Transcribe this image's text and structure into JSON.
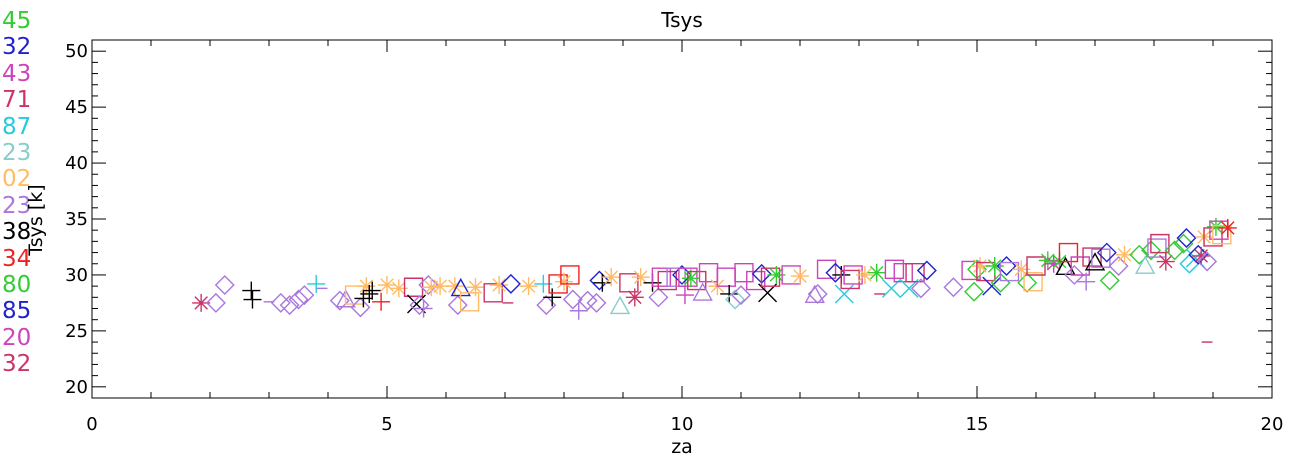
{
  "chart_data": {
    "type": "scatter",
    "title": "Tsys",
    "xlabel": "za",
    "ylabel": "Tsys [k]",
    "xlim": [
      0,
      20
    ],
    "ylim": [
      19,
      51
    ],
    "xticks": [
      0,
      5,
      10,
      15,
      20
    ],
    "yticks": [
      20,
      25,
      30,
      35,
      40,
      45,
      50
    ],
    "xtick_labels": [
      "0",
      "5",
      "10",
      "15",
      "20"
    ],
    "ytick_labels": [
      "20",
      "25",
      "30",
      "35",
      "40",
      "45",
      "50"
    ],
    "grid": false,
    "legend_position": "left-outside",
    "legend": [
      {
        "label": "45",
        "color": "#33cc33"
      },
      {
        "label": "32",
        "color": "#2222cc"
      },
      {
        "label": "43",
        "color": "#cc44bb"
      },
      {
        "label": "71",
        "color": "#cc3366"
      },
      {
        "label": "87",
        "color": "#22ccdd"
      },
      {
        "label": "23",
        "color": "#88cccc"
      },
      {
        "label": "02",
        "color": "#ffbb66"
      },
      {
        "label": "23",
        "color": "#aa77dd"
      },
      {
        "label": "38",
        "color": "#000000"
      },
      {
        "label": "34",
        "color": "#ee2222"
      },
      {
        "label": "80",
        "color": "#33cc33"
      },
      {
        "label": "85",
        "color": "#2222cc"
      },
      {
        "label": "20",
        "color": "#cc44bb"
      },
      {
        "label": "32",
        "color": "#cc3366"
      }
    ],
    "points": [
      {
        "x": 1.85,
        "y": 27.5,
        "m": "star",
        "c": "#cc3366"
      },
      {
        "x": 2.1,
        "y": 27.5,
        "m": "diamond",
        "c": "#aa77dd"
      },
      {
        "x": 2.25,
        "y": 29.1,
        "m": "diamond",
        "c": "#aa77dd"
      },
      {
        "x": 2.7,
        "y": 28.6,
        "m": "plus",
        "c": "#000000"
      },
      {
        "x": 2.72,
        "y": 27.8,
        "m": "plus",
        "c": "#000000"
      },
      {
        "x": 3.0,
        "y": 27.6,
        "m": "dash",
        "c": "#aa77dd"
      },
      {
        "x": 3.2,
        "y": 27.5,
        "m": "diamond",
        "c": "#aa77dd"
      },
      {
        "x": 3.35,
        "y": 27.3,
        "m": "diamond",
        "c": "#aa77dd"
      },
      {
        "x": 3.5,
        "y": 27.8,
        "m": "diamond",
        "c": "#aa77dd"
      },
      {
        "x": 3.6,
        "y": 28.2,
        "m": "diamond",
        "c": "#aa77dd"
      },
      {
        "x": 3.8,
        "y": 29.2,
        "m": "plus",
        "c": "#22ccdd"
      },
      {
        "x": 3.9,
        "y": 28.8,
        "m": "dash",
        "c": "#aa77dd"
      },
      {
        "x": 4.2,
        "y": 27.7,
        "m": "diamond",
        "c": "#aa77dd"
      },
      {
        "x": 4.3,
        "y": 27.8,
        "m": "triangle",
        "c": "#aa77dd"
      },
      {
        "x": 4.45,
        "y": 28.2,
        "m": "square",
        "c": "#ffbb66"
      },
      {
        "x": 4.55,
        "y": 27.1,
        "m": "diamond",
        "c": "#aa77dd"
      },
      {
        "x": 4.6,
        "y": 27.9,
        "m": "plus",
        "c": "#000000"
      },
      {
        "x": 4.65,
        "y": 29.0,
        "m": "star",
        "c": "#ffbb66"
      },
      {
        "x": 4.7,
        "y": 28.3,
        "m": "plus",
        "c": "#000000"
      },
      {
        "x": 4.75,
        "y": 28.6,
        "m": "plus",
        "c": "#000000"
      },
      {
        "x": 4.9,
        "y": 27.6,
        "m": "plus",
        "c": "#ee2222"
      },
      {
        "x": 5.0,
        "y": 29.1,
        "m": "star",
        "c": "#ffbb66"
      },
      {
        "x": 5.2,
        "y": 28.8,
        "m": "star",
        "c": "#ffbb66"
      },
      {
        "x": 5.45,
        "y": 28.9,
        "m": "square",
        "c": "#cc3366"
      },
      {
        "x": 5.5,
        "y": 27.4,
        "m": "x",
        "c": "#000000"
      },
      {
        "x": 5.55,
        "y": 27.3,
        "m": "diamond",
        "c": "#aa77dd"
      },
      {
        "x": 5.62,
        "y": 27.0,
        "m": "plus",
        "c": "#aa77dd"
      },
      {
        "x": 5.7,
        "y": 29.1,
        "m": "diamond",
        "c": "#aa77dd"
      },
      {
        "x": 5.75,
        "y": 28.9,
        "m": "star",
        "c": "#ffbb66"
      },
      {
        "x": 5.9,
        "y": 29.0,
        "m": "star",
        "c": "#ffbb66"
      },
      {
        "x": 6.15,
        "y": 29.0,
        "m": "star",
        "c": "#ffbb66"
      },
      {
        "x": 6.2,
        "y": 27.3,
        "m": "diamond",
        "c": "#aa77dd"
      },
      {
        "x": 6.25,
        "y": 28.8,
        "m": "triangle",
        "c": "#2222cc"
      },
      {
        "x": 6.4,
        "y": 27.6,
        "m": "square",
        "c": "#ffbb66"
      },
      {
        "x": 6.5,
        "y": 28.9,
        "m": "star",
        "c": "#ffbb66"
      },
      {
        "x": 6.8,
        "y": 28.4,
        "m": "square",
        "c": "#cc3366"
      },
      {
        "x": 6.9,
        "y": 29.1,
        "m": "star",
        "c": "#ffbb66"
      },
      {
        "x": 7.05,
        "y": 27.5,
        "m": "dash",
        "c": "#cc3366"
      },
      {
        "x": 7.1,
        "y": 29.2,
        "m": "diamond",
        "c": "#2222cc"
      },
      {
        "x": 7.4,
        "y": 29.0,
        "m": "star",
        "c": "#ffbb66"
      },
      {
        "x": 7.65,
        "y": 29.2,
        "m": "plus",
        "c": "#22ccdd"
      },
      {
        "x": 7.7,
        "y": 27.3,
        "m": "diamond",
        "c": "#aa77dd"
      },
      {
        "x": 7.8,
        "y": 28.0,
        "m": "plus",
        "c": "#000000"
      },
      {
        "x": 7.9,
        "y": 29.2,
        "m": "square",
        "c": "#ee2222"
      },
      {
        "x": 8.0,
        "y": 29.4,
        "m": "star",
        "c": "#ffbb66"
      },
      {
        "x": 8.1,
        "y": 30.0,
        "m": "square",
        "c": "#ee2222"
      },
      {
        "x": 8.15,
        "y": 27.8,
        "m": "diamond",
        "c": "#aa77dd"
      },
      {
        "x": 8.25,
        "y": 26.8,
        "m": "plus",
        "c": "#aa77dd"
      },
      {
        "x": 8.4,
        "y": 27.7,
        "m": "diamond",
        "c": "#aa77dd"
      },
      {
        "x": 8.55,
        "y": 27.5,
        "m": "diamond",
        "c": "#aa77dd"
      },
      {
        "x": 8.6,
        "y": 29.5,
        "m": "diamond",
        "c": "#2222cc"
      },
      {
        "x": 8.65,
        "y": 29.3,
        "m": "plus",
        "c": "#000000"
      },
      {
        "x": 8.8,
        "y": 29.8,
        "m": "star",
        "c": "#ffbb66"
      },
      {
        "x": 8.95,
        "y": 27.2,
        "m": "triangle",
        "c": "#88cccc"
      },
      {
        "x": 9.1,
        "y": 29.3,
        "m": "square",
        "c": "#cc3366"
      },
      {
        "x": 9.2,
        "y": 28.0,
        "m": "star",
        "c": "#cc3366"
      },
      {
        "x": 9.3,
        "y": 29.8,
        "m": "star",
        "c": "#ffbb66"
      },
      {
        "x": 9.5,
        "y": 29.3,
        "m": "plus",
        "c": "#000000"
      },
      {
        "x": 9.6,
        "y": 28.0,
        "m": "diamond",
        "c": "#aa77dd"
      },
      {
        "x": 9.65,
        "y": 29.8,
        "m": "square",
        "c": "#cc44bb"
      },
      {
        "x": 9.75,
        "y": 29.5,
        "m": "square",
        "c": "#cc3366"
      },
      {
        "x": 9.9,
        "y": 29.8,
        "m": "square",
        "c": "#aa77dd"
      },
      {
        "x": 10.0,
        "y": 30.0,
        "m": "diamond",
        "c": "#2222cc"
      },
      {
        "x": 10.05,
        "y": 28.2,
        "m": "plus",
        "c": "#cc44bb"
      },
      {
        "x": 10.1,
        "y": 29.8,
        "m": "square",
        "c": "#cc44bb"
      },
      {
        "x": 10.15,
        "y": 29.7,
        "m": "star",
        "c": "#33cc33"
      },
      {
        "x": 10.25,
        "y": 29.5,
        "m": "square",
        "c": "#cc3366"
      },
      {
        "x": 10.35,
        "y": 28.4,
        "m": "triangle",
        "c": "#aa77dd"
      },
      {
        "x": 10.45,
        "y": 30.2,
        "m": "square",
        "c": "#cc44bb"
      },
      {
        "x": 10.6,
        "y": 29.0,
        "m": "star",
        "c": "#ffbb66"
      },
      {
        "x": 10.75,
        "y": 29.8,
        "m": "square",
        "c": "#cc44bb"
      },
      {
        "x": 10.8,
        "y": 28.3,
        "m": "plus",
        "c": "#000000"
      },
      {
        "x": 10.9,
        "y": 27.8,
        "m": "diamond",
        "c": "#88cccc"
      },
      {
        "x": 11.0,
        "y": 28.2,
        "m": "diamond",
        "c": "#aa77dd"
      },
      {
        "x": 11.05,
        "y": 30.2,
        "m": "square",
        "c": "#cc44bb"
      },
      {
        "x": 11.25,
        "y": 29.5,
        "m": "square",
        "c": "#cc44bb"
      },
      {
        "x": 11.35,
        "y": 30.1,
        "m": "diamond",
        "c": "#2222cc"
      },
      {
        "x": 11.45,
        "y": 28.4,
        "m": "x",
        "c": "#000000"
      },
      {
        "x": 11.5,
        "y": 29.8,
        "m": "square",
        "c": "#cc3366"
      },
      {
        "x": 11.6,
        "y": 30.0,
        "m": "star",
        "c": "#33cc33"
      },
      {
        "x": 11.85,
        "y": 30.0,
        "m": "square",
        "c": "#cc44bb"
      },
      {
        "x": 12.0,
        "y": 29.9,
        "m": "star",
        "c": "#ffbb66"
      },
      {
        "x": 12.25,
        "y": 28.2,
        "m": "triangle",
        "c": "#aa77dd"
      },
      {
        "x": 12.3,
        "y": 28.3,
        "m": "diamond",
        "c": "#aa77dd"
      },
      {
        "x": 12.45,
        "y": 30.5,
        "m": "square",
        "c": "#cc44bb"
      },
      {
        "x": 12.6,
        "y": 30.2,
        "m": "diamond",
        "c": "#2222cc"
      },
      {
        "x": 12.7,
        "y": 30.0,
        "m": "plus",
        "c": "#000000"
      },
      {
        "x": 12.75,
        "y": 28.3,
        "m": "x",
        "c": "#22ccdd"
      },
      {
        "x": 12.85,
        "y": 29.6,
        "m": "square",
        "c": "#cc3366"
      },
      {
        "x": 12.9,
        "y": 30.0,
        "m": "square",
        "c": "#cc44bb"
      },
      {
        "x": 13.1,
        "y": 30.0,
        "m": "star",
        "c": "#ffbb66"
      },
      {
        "x": 13.3,
        "y": 30.2,
        "m": "star",
        "c": "#33cc33"
      },
      {
        "x": 13.35,
        "y": 28.3,
        "m": "dash",
        "c": "#cc3366"
      },
      {
        "x": 13.55,
        "y": 28.8,
        "m": "x",
        "c": "#22ccdd"
      },
      {
        "x": 13.6,
        "y": 30.5,
        "m": "square",
        "c": "#cc44bb"
      },
      {
        "x": 13.75,
        "y": 30.2,
        "m": "square",
        "c": "#cc44bb"
      },
      {
        "x": 13.85,
        "y": 28.8,
        "m": "x",
        "c": "#22ccdd"
      },
      {
        "x": 13.95,
        "y": 30.2,
        "m": "square",
        "c": "#cc3366"
      },
      {
        "x": 14.05,
        "y": 28.8,
        "m": "diamond",
        "c": "#aa77dd"
      },
      {
        "x": 14.15,
        "y": 30.4,
        "m": "diamond",
        "c": "#2222cc"
      },
      {
        "x": 14.6,
        "y": 28.9,
        "m": "diamond",
        "c": "#aa77dd"
      },
      {
        "x": 14.9,
        "y": 30.4,
        "m": "square",
        "c": "#cc44bb"
      },
      {
        "x": 14.95,
        "y": 28.5,
        "m": "diamond",
        "c": "#33cc33"
      },
      {
        "x": 15.0,
        "y": 30.5,
        "m": "diamond",
        "c": "#33cc33"
      },
      {
        "x": 15.05,
        "y": 30.8,
        "m": "star",
        "c": "#ffbb66"
      },
      {
        "x": 15.15,
        "y": 30.3,
        "m": "square",
        "c": "#cc3366"
      },
      {
        "x": 15.25,
        "y": 29.0,
        "m": "x",
        "c": "#2222cc"
      },
      {
        "x": 15.3,
        "y": 30.8,
        "m": "star",
        "c": "#33cc33"
      },
      {
        "x": 15.4,
        "y": 29.3,
        "m": "diamond",
        "c": "#33cc33"
      },
      {
        "x": 15.5,
        "y": 30.8,
        "m": "diamond",
        "c": "#2222cc"
      },
      {
        "x": 15.55,
        "y": 30.3,
        "m": "square",
        "c": "#aa77dd"
      },
      {
        "x": 15.75,
        "y": 30.5,
        "m": "star",
        "c": "#ffbb66"
      },
      {
        "x": 15.85,
        "y": 29.3,
        "m": "diamond",
        "c": "#33cc33"
      },
      {
        "x": 15.95,
        "y": 29.4,
        "m": "square",
        "c": "#ffbb66"
      },
      {
        "x": 16.0,
        "y": 30.8,
        "m": "square",
        "c": "#cc3366"
      },
      {
        "x": 16.2,
        "y": 31.3,
        "m": "star",
        "c": "#33cc33"
      },
      {
        "x": 16.3,
        "y": 31.0,
        "m": "star",
        "c": "#cc44bb"
      },
      {
        "x": 16.4,
        "y": 31.2,
        "m": "star",
        "c": "#33cc33"
      },
      {
        "x": 16.5,
        "y": 30.7,
        "m": "triangle",
        "c": "#000000"
      },
      {
        "x": 16.55,
        "y": 32.0,
        "m": "square",
        "c": "#ee2222"
      },
      {
        "x": 16.65,
        "y": 30.0,
        "m": "diamond",
        "c": "#aa77dd"
      },
      {
        "x": 16.75,
        "y": 30.8,
        "m": "square",
        "c": "#cc44bb"
      },
      {
        "x": 16.85,
        "y": 29.4,
        "m": "plus",
        "c": "#aa77dd"
      },
      {
        "x": 16.95,
        "y": 31.6,
        "m": "square",
        "c": "#cc3366"
      },
      {
        "x": 17.0,
        "y": 31.1,
        "m": "triangle",
        "c": "#000000"
      },
      {
        "x": 17.1,
        "y": 31.5,
        "m": "square",
        "c": "#aa77dd"
      },
      {
        "x": 17.2,
        "y": 32.0,
        "m": "diamond",
        "c": "#2222cc"
      },
      {
        "x": 17.25,
        "y": 29.5,
        "m": "diamond",
        "c": "#33cc33"
      },
      {
        "x": 17.4,
        "y": 30.8,
        "m": "diamond",
        "c": "#aa77dd"
      },
      {
        "x": 17.5,
        "y": 31.8,
        "m": "star",
        "c": "#ffbb66"
      },
      {
        "x": 17.75,
        "y": 31.8,
        "m": "diamond",
        "c": "#33cc33"
      },
      {
        "x": 17.85,
        "y": 30.8,
        "m": "triangle",
        "c": "#88cccc"
      },
      {
        "x": 17.95,
        "y": 32.2,
        "m": "diamond",
        "c": "#33cc33"
      },
      {
        "x": 18.05,
        "y": 32.4,
        "m": "square",
        "c": "#aa77dd"
      },
      {
        "x": 18.1,
        "y": 32.8,
        "m": "square",
        "c": "#cc3366"
      },
      {
        "x": 18.2,
        "y": 31.2,
        "m": "star",
        "c": "#cc3366"
      },
      {
        "x": 18.35,
        "y": 32.2,
        "m": "diamond",
        "c": "#33cc33"
      },
      {
        "x": 18.5,
        "y": 32.8,
        "m": "diamond",
        "c": "#33cc33"
      },
      {
        "x": 18.55,
        "y": 33.3,
        "m": "diamond",
        "c": "#2222cc"
      },
      {
        "x": 18.6,
        "y": 31.0,
        "m": "diamond",
        "c": "#22ccdd"
      },
      {
        "x": 18.7,
        "y": 31.5,
        "m": "x",
        "c": "#22ccdd"
      },
      {
        "x": 18.75,
        "y": 31.8,
        "m": "diamond",
        "c": "#2222cc"
      },
      {
        "x": 18.8,
        "y": 31.7,
        "m": "star",
        "c": "#cc3366"
      },
      {
        "x": 18.85,
        "y": 33.4,
        "m": "star",
        "c": "#ffbb66"
      },
      {
        "x": 18.9,
        "y": 31.2,
        "m": "diamond",
        "c": "#aa77dd"
      },
      {
        "x": 18.9,
        "y": 24.0,
        "m": "dash",
        "c": "#cc3366"
      },
      {
        "x": 19.0,
        "y": 33.4,
        "m": "square",
        "c": "#cc3366"
      },
      {
        "x": 19.05,
        "y": 34.3,
        "m": "star",
        "c": "#33cc33"
      },
      {
        "x": 19.1,
        "y": 34.0,
        "m": "square",
        "c": "#cc44bb"
      },
      {
        "x": 19.15,
        "y": 33.6,
        "m": "square",
        "c": "#ffbb66"
      },
      {
        "x": 19.25,
        "y": 34.2,
        "m": "star",
        "c": "#ee2222"
      }
    ]
  }
}
